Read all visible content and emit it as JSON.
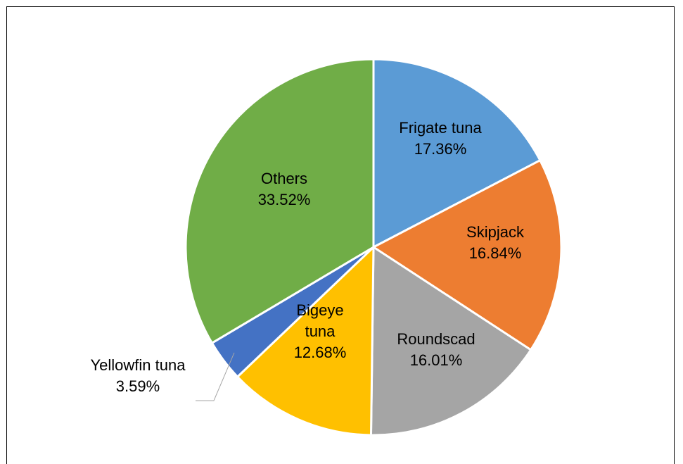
{
  "chart_data": {
    "type": "pie",
    "title": "",
    "start_angle_deg": 0,
    "direction": "clockwise",
    "slices": [
      {
        "label_lines": [
          "Frigate tuna",
          "17.36%"
        ],
        "value": 17.36,
        "color": "#5B9BD5"
      },
      {
        "label_lines": [
          "Skipjack",
          "16.84%"
        ],
        "value": 16.84,
        "color": "#ED7D31"
      },
      {
        "label_lines": [
          "Roundscad",
          "16.01%"
        ],
        "value": 16.01,
        "color": "#A5A5A5"
      },
      {
        "label_lines": [
          "Bigeye",
          "tuna",
          "12.68%"
        ],
        "value": 12.68,
        "color": "#FFC000"
      },
      {
        "label_lines": [
          "Yellowfin tuna",
          "3.59%"
        ],
        "value": 3.59,
        "color": "#4472C4"
      },
      {
        "label_lines": [
          "Others",
          "33.52%"
        ],
        "value": 33.52,
        "color": "#70AD47"
      }
    ],
    "legend": "none",
    "data_labels": "category name and percentage"
  }
}
